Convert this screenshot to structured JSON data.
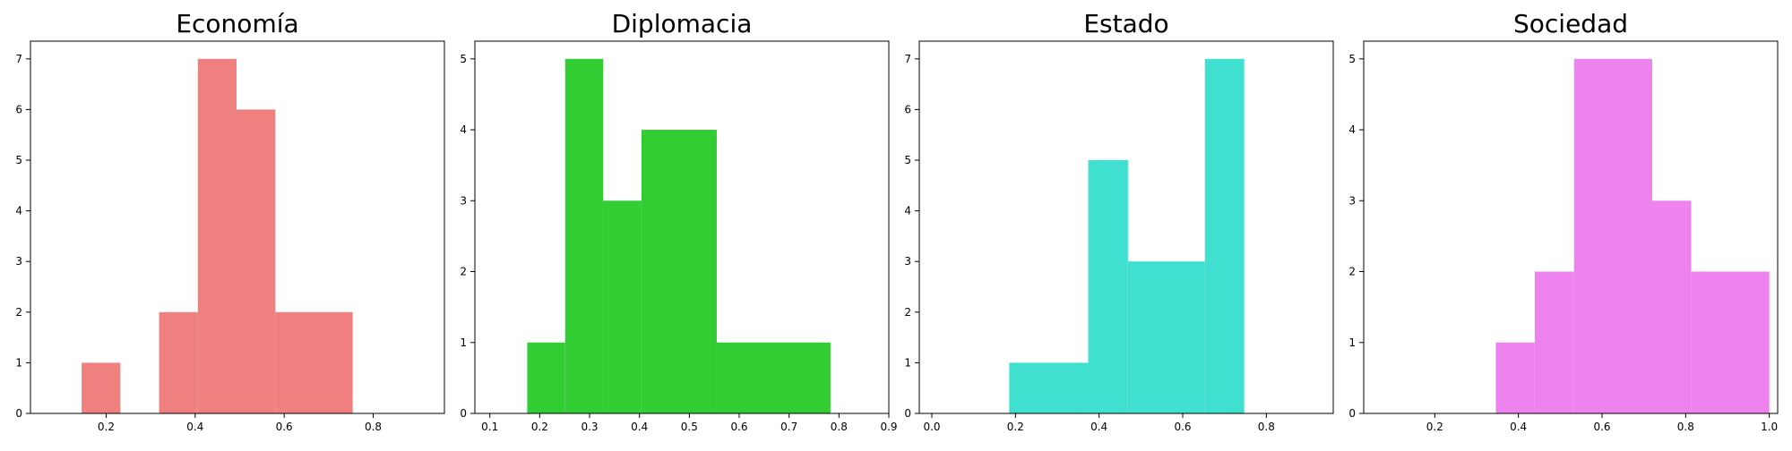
{
  "chart_data": [
    {
      "type": "bar",
      "title": "Economía",
      "color": "#F08080",
      "xlim": [
        0.03,
        0.96
      ],
      "ylim": [
        0,
        7.35
      ],
      "xticks": [
        0.2,
        0.4,
        0.6,
        0.8
      ],
      "xtick_labels": [
        "0.2",
        "0.4",
        "0.6",
        "0.8"
      ],
      "yticks": [
        0,
        1,
        2,
        3,
        4,
        5,
        6,
        7
      ],
      "ytick_labels": [
        "0",
        "1",
        "2",
        "3",
        "4",
        "5",
        "6",
        "7"
      ],
      "bins": [
        {
          "x0": 0.145,
          "x1": 0.232,
          "count": 1
        },
        {
          "x0": 0.319,
          "x1": 0.406,
          "count": 2
        },
        {
          "x0": 0.406,
          "x1": 0.493,
          "count": 7
        },
        {
          "x0": 0.493,
          "x1": 0.58,
          "count": 6
        },
        {
          "x0": 0.58,
          "x1": 0.754,
          "count": 2
        }
      ]
    },
    {
      "type": "bar",
      "title": "Diplomacia",
      "color": "#32CD32",
      "xlim": [
        0.07,
        0.9
      ],
      "ylim": [
        0,
        5.25
      ],
      "xticks": [
        0.1,
        0.2,
        0.3,
        0.4,
        0.5,
        0.6,
        0.7,
        0.8,
        0.9
      ],
      "xtick_labels": [
        "0.1",
        "0.2",
        "0.3",
        "0.4",
        "0.5",
        "0.6",
        "0.7",
        "0.8",
        "0.9"
      ],
      "yticks": [
        0,
        1,
        2,
        3,
        4,
        5
      ],
      "ytick_labels": [
        "0",
        "1",
        "2",
        "3",
        "4",
        "5"
      ],
      "bins": [
        {
          "x0": 0.175,
          "x1": 0.251,
          "count": 1
        },
        {
          "x0": 0.251,
          "x1": 0.327,
          "count": 5
        },
        {
          "x0": 0.327,
          "x1": 0.404,
          "count": 3
        },
        {
          "x0": 0.404,
          "x1": 0.555,
          "count": 4
        },
        {
          "x0": 0.555,
          "x1": 0.783,
          "count": 1
        }
      ]
    },
    {
      "type": "bar",
      "title": "Estado",
      "color": "#40E0D0",
      "xlim": [
        -0.03,
        0.96
      ],
      "ylim": [
        0,
        7.35
      ],
      "xticks": [
        0.0,
        0.2,
        0.4,
        0.6,
        0.8
      ],
      "xtick_labels": [
        "0.0",
        "0.2",
        "0.4",
        "0.6",
        "0.8"
      ],
      "yticks": [
        0,
        1,
        2,
        3,
        4,
        5,
        6,
        7
      ],
      "ytick_labels": [
        "0",
        "1",
        "2",
        "3",
        "4",
        "5",
        "6",
        "7"
      ],
      "bins": [
        {
          "x0": 0.185,
          "x1": 0.374,
          "count": 1
        },
        {
          "x0": 0.374,
          "x1": 0.469,
          "count": 5
        },
        {
          "x0": 0.469,
          "x1": 0.653,
          "count": 3
        },
        {
          "x0": 0.653,
          "x1": 0.747,
          "count": 7
        }
      ]
    },
    {
      "type": "bar",
      "title": "Sociedad",
      "color": "#EE82EE",
      "xlim": [
        0.03,
        1.02
      ],
      "ylim": [
        0,
        5.25
      ],
      "xticks": [
        0.2,
        0.4,
        0.6,
        0.8,
        1.0
      ],
      "xtick_labels": [
        "0.2",
        "0.4",
        "0.6",
        "0.8",
        "1.0"
      ],
      "yticks": [
        0,
        1,
        2,
        3,
        4,
        5
      ],
      "ytick_labels": [
        "0",
        "1",
        "2",
        "3",
        "4",
        "5"
      ],
      "bins": [
        {
          "x0": 0.346,
          "x1": 0.439,
          "count": 1
        },
        {
          "x0": 0.439,
          "x1": 0.533,
          "count": 2
        },
        {
          "x0": 0.533,
          "x1": 0.72,
          "count": 5
        },
        {
          "x0": 0.72,
          "x1": 0.813,
          "count": 3
        },
        {
          "x0": 0.813,
          "x1": 1.0,
          "count": 2
        }
      ]
    }
  ]
}
